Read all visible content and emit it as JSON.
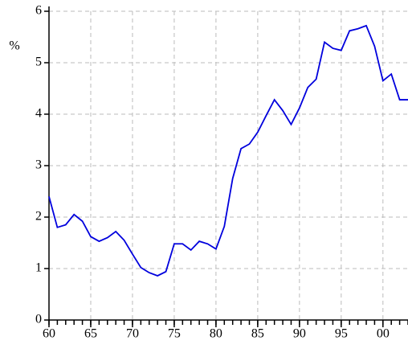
{
  "chart_data": {
    "type": "line",
    "y_label": "%",
    "x": [
      1960,
      1961,
      1962,
      1963,
      1964,
      1965,
      1966,
      1967,
      1968,
      1969,
      1970,
      1971,
      1972,
      1973,
      1974,
      1975,
      1976,
      1977,
      1978,
      1979,
      1980,
      1981,
      1982,
      1983,
      1984,
      1985,
      1986,
      1987,
      1988,
      1989,
      1990,
      1991,
      1992,
      1993,
      1994,
      1995,
      1996,
      1997,
      1998,
      1999,
      2000,
      2001,
      2002,
      2003
    ],
    "series": [
      {
        "color": "#0000dd",
        "values": [
          2.4,
          1.8,
          1.85,
          2.05,
          1.92,
          1.62,
          1.53,
          1.6,
          1.72,
          1.55,
          1.28,
          1.02,
          0.92,
          0.86,
          0.94,
          1.48,
          1.48,
          1.36,
          1.53,
          1.48,
          1.38,
          1.82,
          2.75,
          3.33,
          3.42,
          3.65,
          3.97,
          4.28,
          4.07,
          3.8,
          4.12,
          4.52,
          4.68,
          5.4,
          5.28,
          5.24,
          5.62,
          5.66,
          5.72,
          5.32,
          4.65,
          4.78,
          4.28,
          4.28
        ]
      }
    ],
    "xlim": [
      1960,
      2003
    ],
    "xticks": [
      {
        "value": 1960,
        "label": "60"
      },
      {
        "value": 1965,
        "label": "65"
      },
      {
        "value": 1970,
        "label": "70"
      },
      {
        "value": 1975,
        "label": "75"
      },
      {
        "value": 1980,
        "label": "80"
      },
      {
        "value": 1985,
        "label": "85"
      },
      {
        "value": 1990,
        "label": "90"
      },
      {
        "value": 1995,
        "label": "95"
      },
      {
        "value": 2000,
        "label": "00"
      }
    ],
    "ylim": [
      0,
      6
    ],
    "yticks": [
      0,
      1,
      2,
      3,
      4,
      5,
      6
    ],
    "grid": true
  }
}
